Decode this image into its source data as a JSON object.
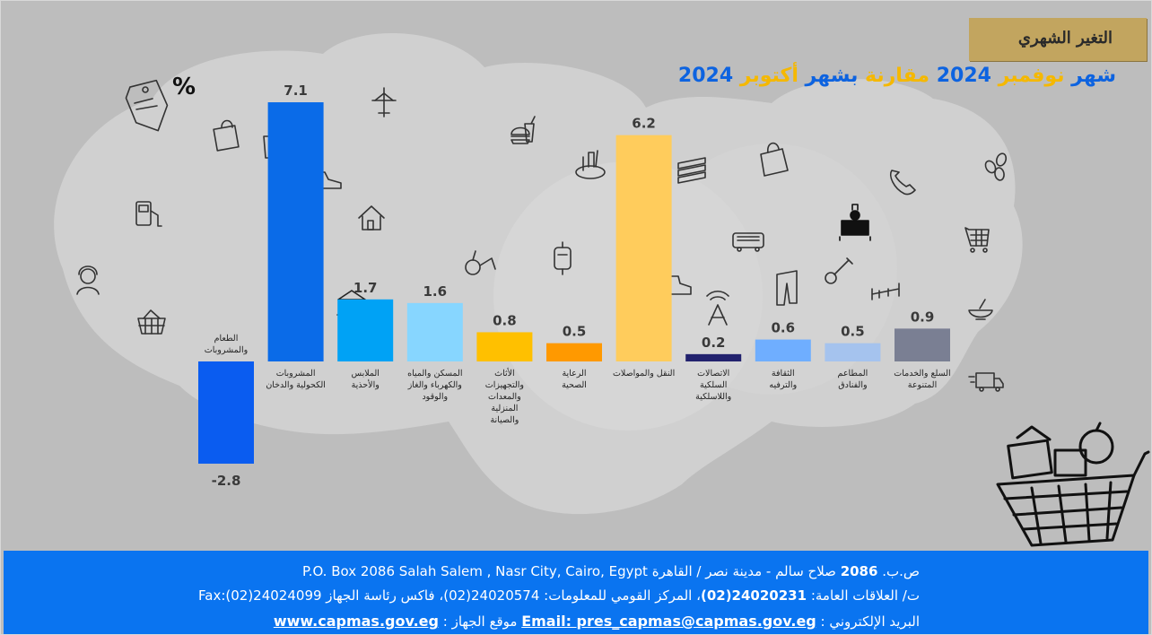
{
  "header": {
    "title": "التغير الشهري",
    "subtitle_parts": [
      {
        "text": "شهر ",
        "color": "blue"
      },
      {
        "text": "نوفمبر ",
        "color": "gold"
      },
      {
        "text": " 2024 ",
        "color": "blue"
      },
      {
        "text": "مقارنة ",
        "color": "gold"
      },
      {
        "text": "بشهر ",
        "color": "blue"
      },
      {
        "text": "أكتوبر ",
        "color": "gold"
      },
      {
        "text": "2024",
        "color": "blue"
      }
    ]
  },
  "chart_data": {
    "type": "bar",
    "categories": [
      [
        "الطعام",
        "والمشروبات"
      ],
      [
        "المشروبات",
        "الكحولية والدخان"
      ],
      [
        "الملابس",
        "والأحذية"
      ],
      [
        "المسكن والمياه",
        "والكهرباء والغاز",
        "والوقود"
      ],
      [
        "الأثاث",
        "والتجهيزات",
        "والمعدات",
        "المنزلية",
        "والصيانة"
      ],
      [
        "الرعاية",
        "الصحية"
      ],
      [
        "النقل والمواصلات"
      ],
      [
        "الاتصالات",
        "السلكية",
        "واللاسلكية"
      ],
      [
        "الثقافة",
        "والترفيه"
      ],
      [
        "المطاعم",
        "والفنادق"
      ],
      [
        "السلع والخدمات",
        "المتنوعة"
      ]
    ],
    "values": [
      -2.8,
      7.1,
      1.7,
      1.6,
      0.8,
      0.5,
      6.2,
      0.2,
      0.6,
      0.5,
      0.9
    ],
    "value_labels": [
      "-2.8",
      "7.1",
      "1.7",
      "1.6",
      "0.8",
      "0.5",
      "6.2",
      "0.2",
      "0.6",
      "0.5",
      "0.9"
    ],
    "colors": [
      "#0a5cf0",
      "#0a6be8",
      "#00a2f5",
      "#87d6ff",
      "#ffc000",
      "#ff9900",
      "#ffcc5c",
      "#22226e",
      "#6faeff",
      "#a5c3ee",
      "#7a7f93"
    ],
    "ylim": [
      -2.8,
      7.1
    ],
    "grid": false,
    "legend": "none"
  },
  "icons": [
    "percent-tag-icon",
    "shopping-bag-icon",
    "fuel-pump-icon",
    "headset-person-icon",
    "basket-icon",
    "drink-cup-icon",
    "airplane-icon",
    "shoe-icon",
    "house-icon",
    "bank-icon",
    "wine-glass-icon",
    "burger-drink-icon",
    "hookah-icon",
    "iv-bag-icon",
    "dinner-plate-icon",
    "heartbeat-icon",
    "books-icon",
    "hiking-boot-icon",
    "antenna-icon",
    "shopping-bag-outline-icon",
    "bus-icon",
    "trousers-icon",
    "telephone-icon",
    "chef-table-icon",
    "guitar-icon",
    "beds-icon",
    "coffee-beans-icon",
    "cart-grid-icon",
    "mortar-icon",
    "delivery-truck-icon",
    "shopping-cart-illustration"
  ],
  "footer": {
    "address_num": "2086",
    "address_ar_prefix": "ص.ب. ",
    "address_ar_suffix": " صلاح سالم - مدينة نصر / القاهرة",
    "address_en": "  P.O. Box 2086 Salah Salem , Nasr City, Cairo, Egypt",
    "phone_prefix": "ت/ العلاقات العامة: ",
    "phone_pr": "24020231(02)",
    "phone_rest": "، المركز القومي للمعلومات: 24020574(02)، فاكس رئاسة الجهاز  Fax:(02)24024099",
    "email_label": "البريد الإلكتروني : ",
    "email": "Email: pres_capmas@capmas.gov.eg",
    "site_label": " موقع الجهاز : ",
    "website": "www.capmas.gov.eg"
  }
}
